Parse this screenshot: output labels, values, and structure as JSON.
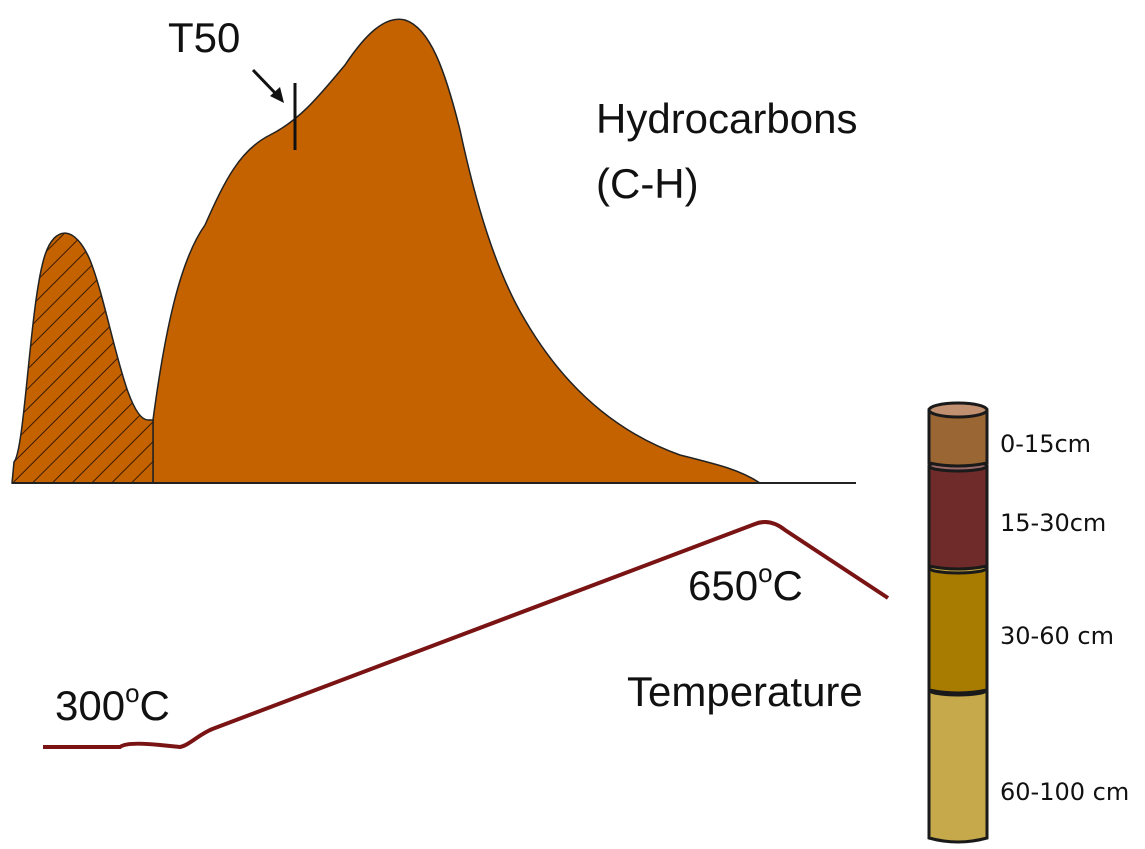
{
  "annotations": {
    "t50": "T50",
    "hydrocarbons": [
      "Hydrocarbons",
      "(C-H)"
    ],
    "temperature": "Temperature",
    "start_temp": {
      "number": "300",
      "degree": "o",
      "unit": "C"
    },
    "end_temp": {
      "number": "650",
      "degree": "o",
      "unit": "C"
    }
  },
  "core": {
    "layers": [
      "0-15cm",
      "15-30cm",
      "30-60 cm",
      "60-100 cm"
    ]
  }
}
